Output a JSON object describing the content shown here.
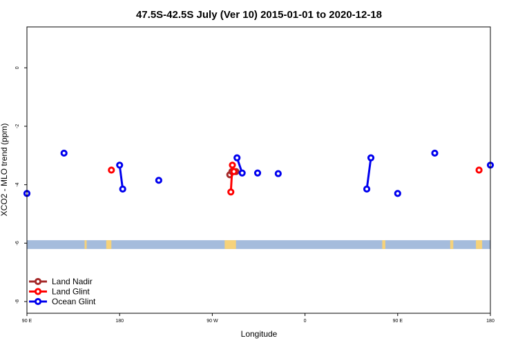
{
  "chart_data": {
    "type": "line",
    "title": "47.5S-42.5S July (Ver 10)   2015-01-01 to 2020-12-18",
    "xlabel": "Longitude",
    "ylabel": "XCO2 - MLO trend (ppm)",
    "xlim": [
      90,
      450
    ],
    "ylim": [
      -8.4,
      1.4
    ],
    "x_ticks": [
      {
        "value": 90,
        "label": "90 E"
      },
      {
        "value": 180,
        "label": "180"
      },
      {
        "value": 270,
        "label": "90 W"
      },
      {
        "value": 360,
        "label": "0"
      },
      {
        "value": 450,
        "label": "90 E"
      },
      {
        "value": 540,
        "label": "180"
      }
    ],
    "y_ticks": [
      {
        "value": 0,
        "label": "0"
      },
      {
        "value": -2,
        "label": "-2"
      },
      {
        "value": -4,
        "label": "-4"
      },
      {
        "value": -6,
        "label": "-6"
      },
      {
        "value": -8,
        "label": "-8"
      }
    ],
    "x_range": [
      90,
      540
    ],
    "land_band": {
      "y_from": -6.2,
      "y_to": -5.9,
      "color": "#a5bcdc",
      "land_color": "#f6d27a",
      "land_segments": [
        [
          146,
          148
        ],
        [
          167,
          172
        ],
        [
          282,
          293
        ],
        [
          435,
          438
        ],
        [
          501,
          504
        ],
        [
          526,
          532
        ]
      ]
    },
    "legend_position": "bottom-left",
    "series": [
      {
        "name": "Land Nadir",
        "color": "#a52a2a",
        "segments": [
          [
            {
              "x": 287,
              "y": -3.66
            },
            {
              "x": 289,
              "y": -3.55
            },
            {
              "x": 293,
              "y": -3.55
            }
          ]
        ]
      },
      {
        "name": "Land Glint",
        "color": "#ff0000",
        "segments": [
          [
            {
              "x": 172,
              "y": -3.5
            }
          ],
          [
            {
              "x": 288,
              "y": -4.25
            },
            {
              "x": 289.5,
              "y": -3.33
            },
            {
              "x": 291,
              "y": -3.55
            }
          ],
          [
            {
              "x": 529,
              "y": -3.5
            }
          ]
        ]
      },
      {
        "name": "Ocean Glint",
        "color": "#0000ee",
        "segments": [
          [
            {
              "x": 90,
              "y": -4.3
            }
          ],
          [
            {
              "x": 126,
              "y": -2.92
            }
          ],
          [
            {
              "x": 180,
              "y": -3.33
            },
            {
              "x": 183,
              "y": -4.15
            }
          ],
          [
            {
              "x": 218,
              "y": -3.85
            }
          ],
          [
            {
              "x": 294,
              "y": -3.08
            },
            {
              "x": 299,
              "y": -3.6
            }
          ],
          [
            {
              "x": 314,
              "y": -3.6
            }
          ],
          [
            {
              "x": 334,
              "y": -3.62
            }
          ],
          [
            {
              "x": 420,
              "y": -4.15
            },
            {
              "x": 424,
              "y": -3.08
            }
          ],
          [
            {
              "x": 450,
              "y": -4.3
            }
          ],
          [
            {
              "x": 486,
              "y": -2.92
            }
          ],
          [
            {
              "x": 540,
              "y": -3.33
            }
          ]
        ]
      }
    ]
  }
}
